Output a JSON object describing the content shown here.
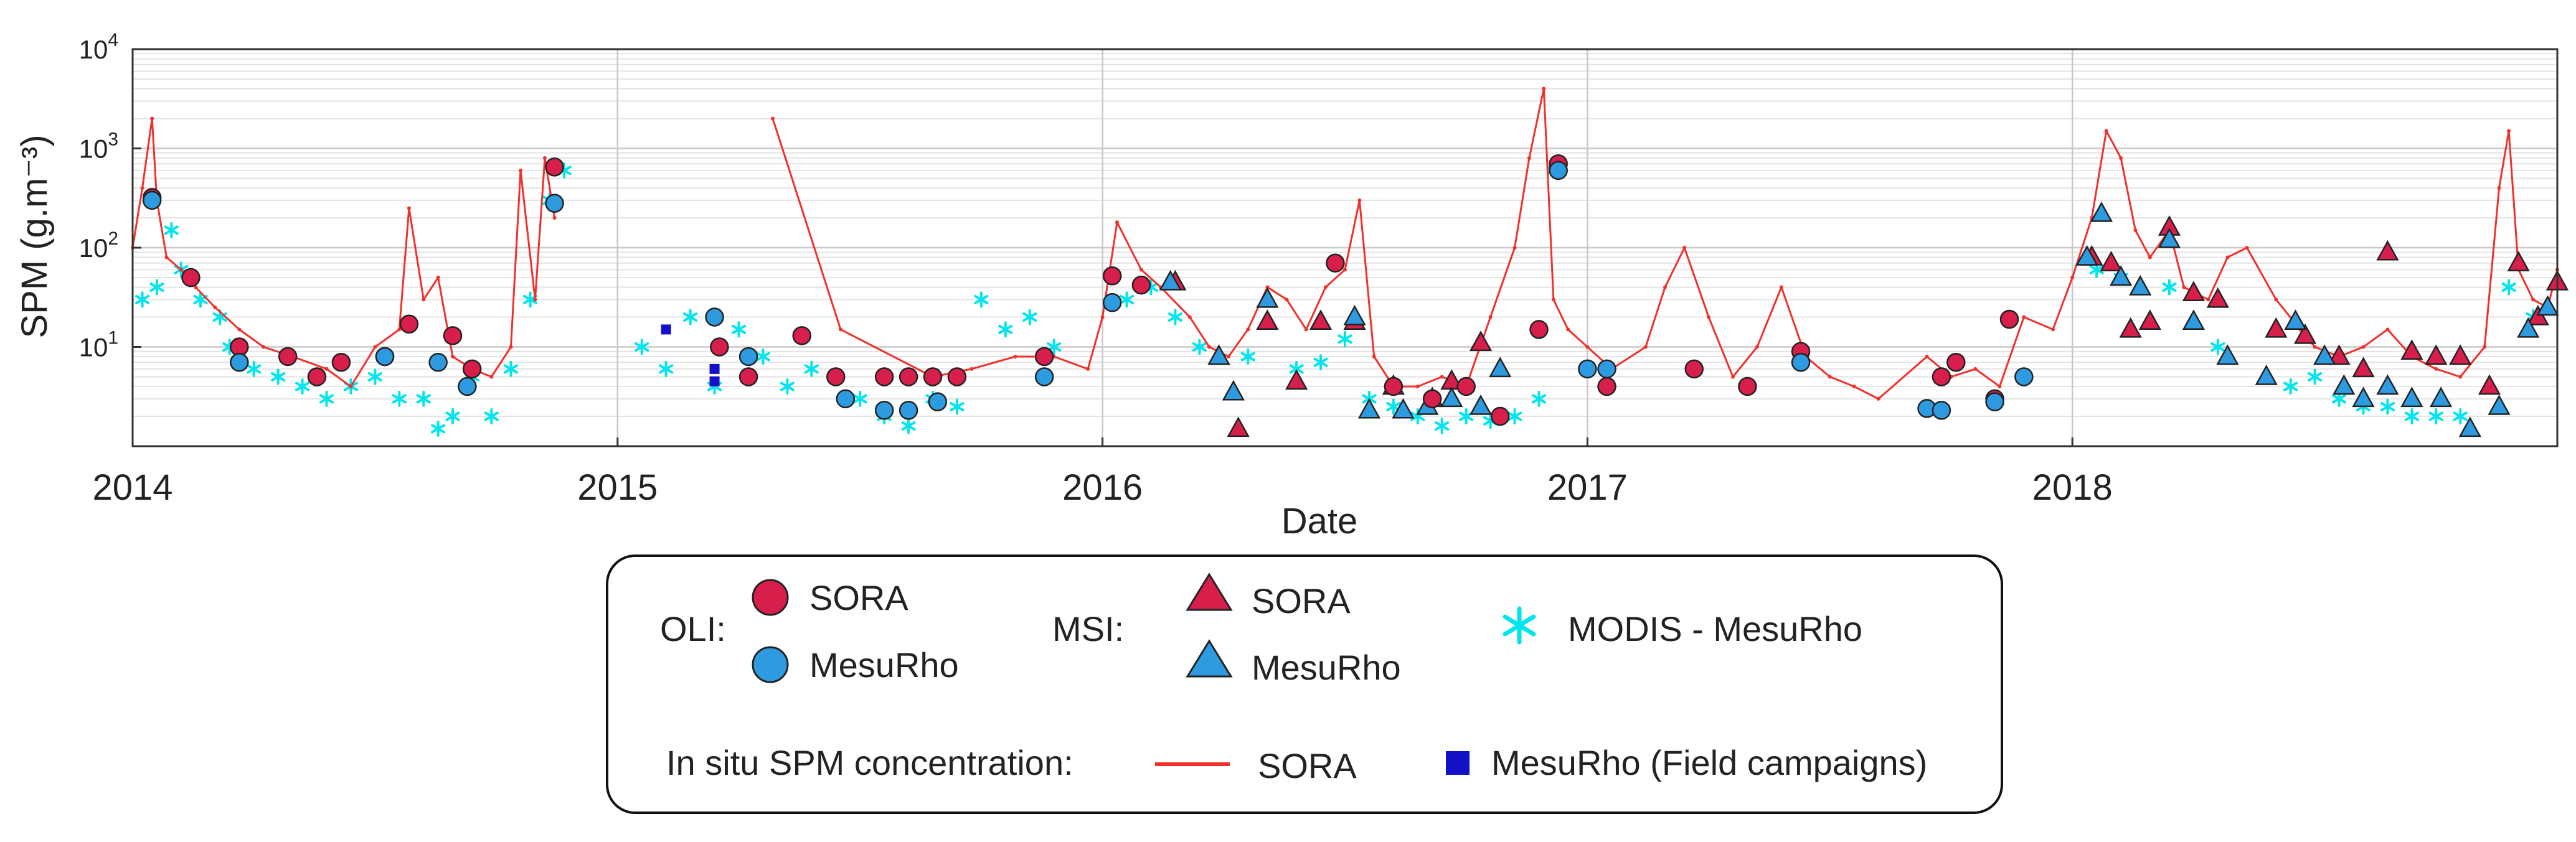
{
  "chart_data": {
    "type": "scatter",
    "title": "",
    "xlabel": "Date",
    "ylabel": "SPM (g.m⁻³)",
    "yscale": "log",
    "ylim": [
      1,
      10000
    ],
    "xlim": [
      2014.0,
      2019.0
    ],
    "x_ticks": [
      {
        "value": 2014,
        "label": "2014"
      },
      {
        "value": 2015,
        "label": "2015"
      },
      {
        "value": 2016,
        "label": "2016"
      },
      {
        "value": 2017,
        "label": "2017"
      },
      {
        "value": 2018,
        "label": "2018"
      }
    ],
    "y_ticks": [
      {
        "value": 10,
        "base": "10",
        "exp": "1"
      },
      {
        "value": 100,
        "base": "10",
        "exp": "2"
      },
      {
        "value": 1000,
        "base": "10",
        "exp": "3"
      },
      {
        "value": 10000,
        "base": "10",
        "exp": "4"
      }
    ],
    "grid": true,
    "legend": {
      "position": "bottom-center",
      "oli_label": "OLI:",
      "msi_label": "MSI:",
      "insitu_label": "In situ SPM concentration:",
      "entries": [
        {
          "key": "oli_sora",
          "text": "SORA",
          "marker": "circle",
          "color": "#D81E4A"
        },
        {
          "key": "oli_mesurho",
          "text": "MesuRho",
          "marker": "circle",
          "color": "#2E9BE0"
        },
        {
          "key": "msi_sora",
          "text": "SORA",
          "marker": "triangle",
          "color": "#D81E4A"
        },
        {
          "key": "msi_mesurho",
          "text": "MesuRho",
          "marker": "triangle",
          "color": "#2E9BE0"
        },
        {
          "key": "modis",
          "text": "MODIS - MesuRho",
          "marker": "asterisk",
          "color": "#00E5EE"
        },
        {
          "key": "insitu_sora",
          "text": "SORA",
          "marker": "line",
          "color": "#F2302A"
        },
        {
          "key": "insitu_mesurho",
          "text": "MesuRho (Field campaigns)",
          "marker": "square",
          "color": "#1410C8"
        }
      ]
    },
    "series": [
      {
        "name": "In situ SORA",
        "type": "line",
        "color": "#F2302A",
        "x": [
          2014.0,
          2014.02,
          2014.04,
          2014.05,
          2014.07,
          2014.1,
          2014.13,
          2014.17,
          2014.22,
          2014.27,
          2014.33,
          2014.4,
          2014.45,
          2014.5,
          2014.55,
          2014.57,
          2014.6,
          2014.63,
          2014.66,
          2014.7,
          2014.74,
          2014.78,
          2014.8,
          2014.83,
          2014.85,
          2014.87,
          2015.32,
          2015.46,
          2015.65,
          2015.73,
          2015.82,
          2015.9,
          2015.97,
          2016.0,
          2016.03,
          2016.08,
          2016.12,
          2016.18,
          2016.22,
          2016.26,
          2016.3,
          2016.34,
          2016.38,
          2016.42,
          2016.46,
          2016.5,
          2016.53,
          2016.56,
          2016.6,
          2016.65,
          2016.7,
          2016.75,
          2016.8,
          2016.85,
          2016.88,
          2016.91,
          2016.93,
          2016.96,
          2017.0,
          2017.05,
          2017.12,
          2017.16,
          2017.2,
          2017.25,
          2017.3,
          2017.35,
          2017.4,
          2017.45,
          2017.5,
          2017.55,
          2017.6,
          2017.7,
          2017.75,
          2017.8,
          2017.85,
          2017.9,
          2017.96,
          2018.0,
          2018.04,
          2018.07,
          2018.1,
          2018.13,
          2018.16,
          2018.2,
          2018.23,
          2018.28,
          2018.32,
          2018.36,
          2018.42,
          2018.47,
          2018.5,
          2018.55,
          2018.6,
          2018.65,
          2018.7,
          2018.75,
          2018.8,
          2018.85,
          2018.88,
          2018.9,
          2018.92,
          2018.95,
          2018.98,
          2019.0
        ],
        "y": [
          100,
          400,
          2000,
          300,
          80,
          60,
          40,
          25,
          15,
          10,
          8,
          6,
          4,
          10,
          15,
          250,
          30,
          50,
          8,
          6,
          5,
          10,
          600,
          30,
          800,
          200,
          2000,
          15,
          5,
          6,
          8,
          8,
          6,
          20,
          180,
          60,
          40,
          20,
          10,
          8,
          15,
          40,
          30,
          15,
          40,
          60,
          300,
          8,
          4,
          4,
          5,
          4,
          20,
          100,
          800,
          4000,
          30,
          15,
          10,
          6,
          10,
          40,
          100,
          20,
          5,
          10,
          40,
          8,
          5,
          4,
          3,
          8,
          5,
          6,
          4,
          20,
          15,
          50,
          200,
          1500,
          800,
          150,
          80,
          150,
          40,
          30,
          80,
          100,
          30,
          15,
          10,
          8,
          10,
          15,
          8,
          6,
          5,
          10,
          400,
          1500,
          60,
          30,
          25,
          60
        ]
      },
      {
        "name": "OLI SORA",
        "type": "circle",
        "color": "#D81E4A",
        "x": [
          2014.04,
          2014.12,
          2014.22,
          2014.32,
          2014.38,
          2014.43,
          2014.52,
          2014.57,
          2014.66,
          2014.7,
          2014.87,
          2015.21,
          2015.27,
          2015.38,
          2015.45,
          2015.55,
          2015.6,
          2015.65,
          2015.7,
          2015.88,
          2016.02,
          2016.08,
          2016.48,
          2016.6,
          2016.68,
          2016.75,
          2016.82,
          2016.9,
          2016.94,
          2017.04,
          2017.22,
          2017.33,
          2017.44,
          2017.73,
          2017.76,
          2017.84,
          2017.87
        ],
        "y": [
          320,
          50,
          10,
          8,
          5,
          7,
          8,
          17,
          13,
          6,
          650,
          10,
          5,
          13,
          5,
          5,
          5,
          5,
          5,
          8,
          52,
          42,
          70,
          4,
          3,
          4,
          2,
          15,
          700,
          4,
          6,
          4,
          9,
          5,
          7,
          3,
          19
        ]
      },
      {
        "name": "OLI MesuRho",
        "type": "circle",
        "color": "#2E9BE0",
        "x": [
          2014.04,
          2014.22,
          2014.52,
          2014.63,
          2014.69,
          2014.87,
          2015.2,
          2015.27,
          2015.47,
          2015.55,
          2015.6,
          2015.66,
          2015.88,
          2016.02,
          2016.94,
          2017.0,
          2017.04,
          2017.44,
          2017.7,
          2017.73,
          2017.84,
          2017.9
        ],
        "y": [
          300,
          7,
          8,
          7,
          4,
          280,
          20,
          8,
          3,
          2.3,
          2.3,
          2.8,
          5,
          28,
          600,
          6,
          6,
          7,
          2.4,
          2.3,
          2.8,
          5
        ]
      },
      {
        "name": "MSI SORA",
        "type": "triangle",
        "color": "#D81E4A",
        "x": [
          2016.15,
          2016.24,
          2016.28,
          2016.34,
          2016.4,
          2016.45,
          2016.52,
          2016.6,
          2016.68,
          2016.72,
          2016.78,
          2018.04,
          2018.08,
          2018.12,
          2018.16,
          2018.2,
          2018.25,
          2018.3,
          2018.42,
          2018.48,
          2018.55,
          2018.6,
          2018.65,
          2018.7,
          2018.75,
          2018.8,
          2018.86,
          2018.92,
          2018.96,
          2019.0
        ],
        "y": [
          45,
          8,
          1.5,
          18,
          4.5,
          18,
          18,
          4,
          3,
          4.5,
          11,
          80,
          70,
          15,
          18,
          160,
          35,
          30,
          15,
          13,
          8,
          6,
          90,
          9,
          8,
          8,
          4,
          70,
          20,
          45
        ]
      },
      {
        "name": "MSI MesuRho",
        "type": "triangle",
        "color": "#2E9BE0",
        "x": [
          2016.14,
          2016.24,
          2016.27,
          2016.34,
          2016.52,
          2016.55,
          2016.62,
          2016.67,
          2016.72,
          2016.78,
          2016.82,
          2018.03,
          2018.06,
          2018.1,
          2018.14,
          2018.2,
          2018.25,
          2018.32,
          2018.4,
          2018.46,
          2018.52,
          2018.56,
          2018.6,
          2018.65,
          2018.7,
          2018.76,
          2018.82,
          2018.88,
          2018.94,
          2018.98
        ],
        "y": [
          45,
          8,
          3.5,
          30,
          20,
          2.3,
          2.3,
          2.5,
          3,
          2.5,
          6,
          80,
          220,
          50,
          40,
          120,
          18,
          8,
          5,
          18,
          8,
          4,
          3,
          4,
          3,
          3,
          1.5,
          2.5,
          15,
          25
        ]
      },
      {
        "name": "MODIS MesuRho",
        "type": "asterisk",
        "color": "#00E5EE",
        "x": [
          2014.02,
          2014.05,
          2014.08,
          2014.1,
          2014.14,
          2014.18,
          2014.2,
          2014.25,
          2014.3,
          2014.35,
          2014.4,
          2014.45,
          2014.5,
          2014.55,
          2014.6,
          2014.63,
          2014.66,
          2014.7,
          2014.74,
          2014.78,
          2014.82,
          2014.86,
          2014.89,
          2015.05,
          2015.1,
          2015.15,
          2015.2,
          2015.25,
          2015.3,
          2015.35,
          2015.4,
          2015.45,
          2015.5,
          2015.55,
          2015.6,
          2015.65,
          2015.7,
          2015.75,
          2015.8,
          2015.85,
          2015.9,
          2016.05,
          2016.1,
          2016.15,
          2016.2,
          2016.3,
          2016.4,
          2016.45,
          2016.5,
          2016.55,
          2016.6,
          2016.65,
          2016.7,
          2016.75,
          2016.8,
          2016.85,
          2016.9,
          2016.93,
          2018.05,
          2018.1,
          2018.2,
          2018.3,
          2018.45,
          2018.5,
          2018.55,
          2018.6,
          2018.65,
          2018.7,
          2018.75,
          2018.8,
          2018.9,
          2018.95
        ],
        "y": [
          30,
          40,
          150,
          60,
          30,
          20,
          10,
          6,
          5,
          4,
          3,
          4,
          5,
          3,
          3,
          1.5,
          2,
          5,
          2,
          6,
          30,
          300,
          600,
          10,
          6,
          20,
          4,
          15,
          8,
          4,
          6,
          5,
          3,
          2,
          1.6,
          3,
          2.5,
          30,
          15,
          20,
          10,
          30,
          40,
          20,
          10,
          8,
          6,
          7,
          12,
          3,
          2.5,
          2,
          1.6,
          2,
          1.8,
          2,
          3,
          600,
          60,
          50,
          40,
          10,
          4,
          5,
          3,
          2.5,
          2.5,
          2,
          2,
          2,
          40,
          20
        ]
      },
      {
        "name": "In situ MesuRho (Field campaigns)",
        "type": "square",
        "color": "#1410C8",
        "x": [
          2015.1,
          2015.2,
          2015.2
        ],
        "y": [
          15,
          6,
          4.5
        ]
      }
    ]
  }
}
